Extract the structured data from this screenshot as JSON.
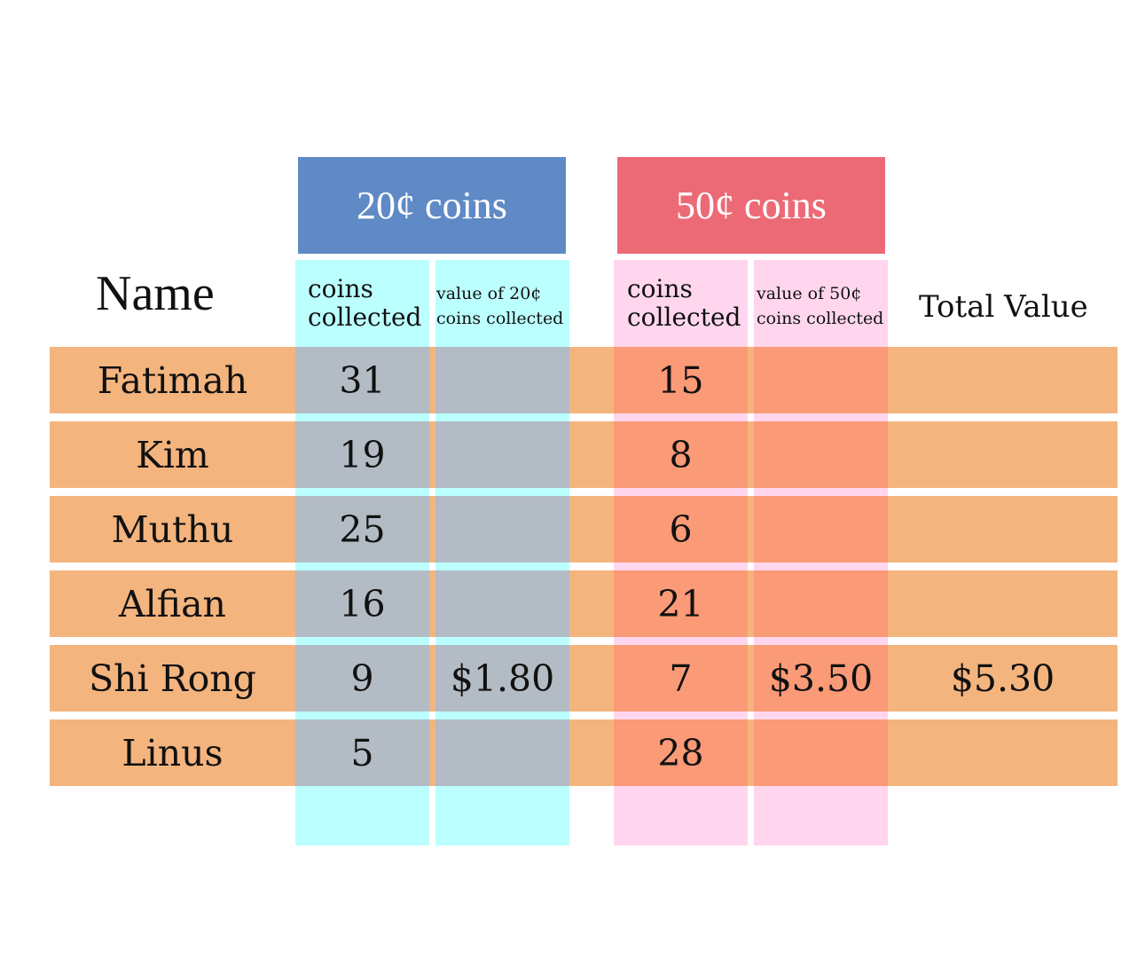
{
  "groups": {
    "twenty": {
      "label": "20¢ coins",
      "color": "#5f8ac6"
    },
    "fifty": {
      "label": "50¢ coins",
      "color": "#ec6a75"
    }
  },
  "headers": {
    "name": "Name",
    "twenty_collected_line1": "coins",
    "twenty_collected_line2": "collected",
    "twenty_value_line1": "value of 20¢",
    "twenty_value_line2": "coins collected",
    "fifty_collected_line1": "coins",
    "fifty_collected_line2": "collected",
    "fifty_value_line1": "value of 50¢",
    "fifty_value_line2": "coins collected",
    "total": "Total Value"
  },
  "rows": [
    {
      "name": "Fatimah",
      "twenty_count": "31",
      "twenty_value": "",
      "fifty_count": "15",
      "fifty_value": "",
      "total": ""
    },
    {
      "name": "Kim",
      "twenty_count": "19",
      "twenty_value": "",
      "fifty_count": "8",
      "fifty_value": "",
      "total": ""
    },
    {
      "name": "Muthu",
      "twenty_count": "25",
      "twenty_value": "",
      "fifty_count": "6",
      "fifty_value": "",
      "total": ""
    },
    {
      "name": "Alfian",
      "twenty_count": "16",
      "twenty_value": "",
      "fifty_count": "21",
      "fifty_value": "",
      "total": ""
    },
    {
      "name": "Shi Rong",
      "twenty_count": "9",
      "twenty_value": "$1.80",
      "fifty_count": "7",
      "fifty_value": "$3.50",
      "total": "$5.30"
    },
    {
      "name": "Linus",
      "twenty_count": "5",
      "twenty_value": "",
      "fifty_count": "28",
      "fifty_value": "",
      "total": ""
    }
  ],
  "colors": {
    "row_stripe": "#f4b47e",
    "twenty_column": "#bbffff",
    "twenty_overlay": "#b3bbc4",
    "fifty_column": "#ffd6ee",
    "fifty_overlay": "#fa9a76"
  }
}
